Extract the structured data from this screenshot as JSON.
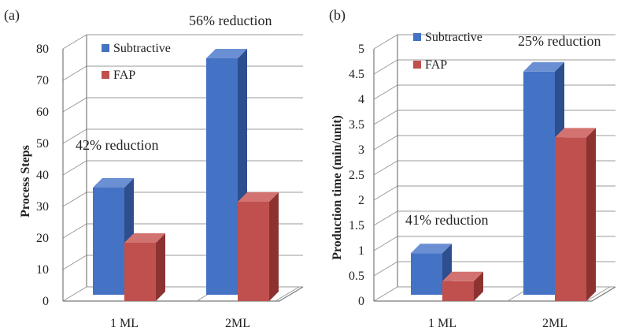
{
  "colors": {
    "subtractive": {
      "front": "#4472c4",
      "side": "#2d4f8e",
      "top": "#6a8fd3"
    },
    "fap": {
      "front": "#c0504d",
      "side": "#8c3331",
      "top": "#d27371"
    }
  },
  "chart_data": [
    {
      "panel": "(a)",
      "type": "bar",
      "ylabel": "Process Steps",
      "xlabel": "",
      "ylim": [
        0,
        80
      ],
      "yticks": [
        "0",
        "10",
        "20",
        "30",
        "40",
        "50",
        "60",
        "70",
        "80"
      ],
      "categories": [
        "1 ML",
        "2ML"
      ],
      "series": [
        {
          "name": "Subtractive",
          "values": [
            36,
            77
          ]
        },
        {
          "name": "FAP",
          "values": [
            21,
            34
          ]
        }
      ],
      "legend": "top-left",
      "annotations": [
        "42% reduction",
        "56% reduction"
      ]
    },
    {
      "panel": "(b)",
      "type": "bar",
      "ylabel": "Production time (min/unit)",
      "xlabel": "",
      "ylim": [
        0,
        5
      ],
      "yticks": [
        "0",
        "0.5",
        "1",
        "1.5",
        "2",
        "2.5",
        "3",
        "3.5",
        "4",
        "4.5",
        "5"
      ],
      "categories": [
        "1 ML",
        "2ML"
      ],
      "series": [
        {
          "name": "Subtractive",
          "values": [
            0.95,
            4.55
          ]
        },
        {
          "name": "FAP",
          "values": [
            0.55,
            3.4
          ]
        }
      ],
      "legend": "top-left",
      "annotations": [
        "41% reduction",
        "25% reduction"
      ]
    }
  ]
}
